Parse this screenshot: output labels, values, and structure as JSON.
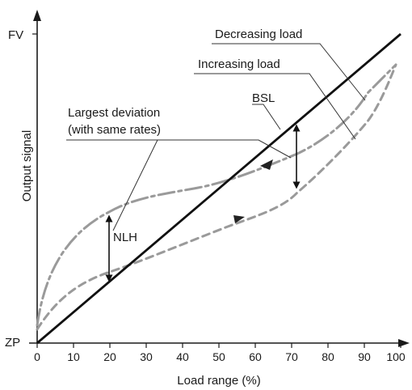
{
  "figure": {
    "y_top_label": "FV",
    "y_origin_label": "ZP",
    "y_axis_title": "Output signal",
    "x_axis_title": "Load range (%)",
    "x_ticks": [
      "0",
      "10",
      "20",
      "30",
      "40",
      "50",
      "60",
      "70",
      "80",
      "90",
      "100"
    ],
    "annotations": {
      "decreasing": "Decreasing load",
      "increasing": "Increasing load",
      "bsl": "BSL",
      "deviation_line1": "Largest deviation",
      "deviation_line2": "(with same rates)",
      "nlh": "NLH"
    },
    "colors": {
      "axis": "#1a1a1a",
      "bsl_line": "#111111",
      "curves": "#9a9a9a",
      "leader": "#333333"
    }
  }
}
